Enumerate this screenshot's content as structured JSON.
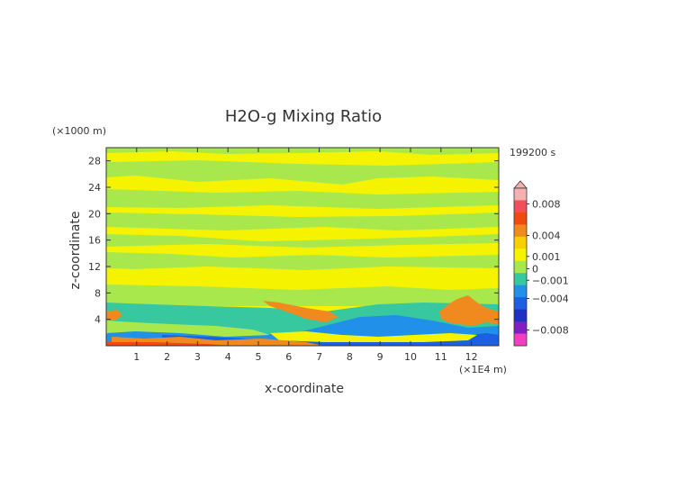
{
  "chart_data": {
    "type": "heatmap",
    "title": "H2O-g Mixing Ratio",
    "xlabel": "x-coordinate",
    "ylabel": "z-coordinate",
    "x_unit": "(×1E4 m)",
    "y_unit": "(×1000 m)",
    "time_label": "199200 s",
    "xlim": [
      0,
      12.9
    ],
    "ylim": [
      0,
      30
    ],
    "x_ticks": [
      1,
      2,
      3,
      4,
      5,
      6,
      7,
      8,
      9,
      10,
      11,
      12
    ],
    "y_ticks": [
      4,
      8,
      12,
      16,
      20,
      24,
      28
    ],
    "colorbar": {
      "range": [
        -0.01,
        0.01
      ],
      "tick_labels": [
        "0.008",
        "0.004",
        "0.001",
        "0",
        "−0.001",
        "−0.004",
        "−0.008"
      ],
      "tick_values": [
        0.008,
        0.004,
        0.001,
        0,
        -0.001,
        -0.004,
        -0.008
      ],
      "colors": [
        {
          "value": 0.009,
          "color": "#f6b0b0"
        },
        {
          "value": 0.006,
          "color": "#f0505a"
        },
        {
          "value": 0.003,
          "color": "#f04a10"
        },
        {
          "value": 0.0015,
          "color": "#f08a1e"
        },
        {
          "value": 0.0007,
          "color": "#f7d000"
        },
        {
          "value": 0.0001,
          "color": "#f6f300"
        },
        {
          "value": -0.0001,
          "color": "#a8e84c"
        },
        {
          "value": -0.0007,
          "color": "#37c8a0"
        },
        {
          "value": -0.0015,
          "color": "#2090e8"
        },
        {
          "value": -0.003,
          "color": "#1a60e0"
        },
        {
          "value": -0.006,
          "color": "#2030c0"
        },
        {
          "value": -0.0085,
          "color": "#8020c0"
        },
        {
          "value": -0.0095,
          "color": "#f040c0"
        }
      ]
    },
    "field_description_regions": [
      {
        "level": 0.0001,
        "x": [
          0,
          12.9
        ],
        "y": [
          7.5,
          30
        ],
        "note": "background yellow"
      },
      {
        "level": -0.0001,
        "x": [
          0,
          12.9
        ],
        "y": [
          0,
          30
        ],
        "note": "green bands"
      },
      {
        "level": -0.0015,
        "x": [
          0.5,
          12.8
        ],
        "y": [
          0,
          5
        ]
      },
      {
        "level": 0.0015,
        "x": [
          0,
          0.6
        ],
        "y": [
          3.5,
          5
        ]
      },
      {
        "level": 0.0015,
        "x": [
          5,
          7.3
        ],
        "y": [
          4,
          6.5
        ]
      },
      {
        "level": 0.0015,
        "x": [
          10,
          12.2
        ],
        "y": [
          3,
          7
        ]
      }
    ]
  }
}
